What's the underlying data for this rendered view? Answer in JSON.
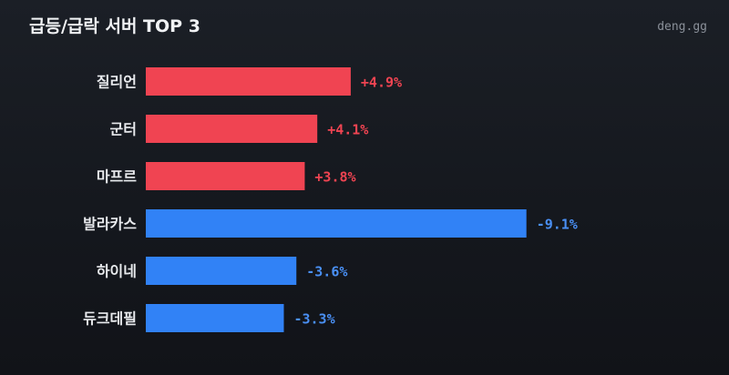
{
  "header": {
    "title": "급등/급락 서버 TOP 3",
    "brand": "deng.gg"
  },
  "colors": {
    "up": "#f04452",
    "down": "#3182f6",
    "up_text": "#f04452",
    "down_text": "#4a90f5"
  },
  "chart_data": {
    "type": "bar",
    "orientation": "horizontal",
    "categories": [
      "질리언",
      "군터",
      "마프르",
      "발라카스",
      "하이네",
      "듀크데필"
    ],
    "values": [
      4.9,
      4.1,
      3.8,
      -9.1,
      -3.6,
      -3.3
    ],
    "value_labels": [
      "+4.9%",
      "+4.1%",
      "+3.8%",
      "-9.1%",
      "-3.6%",
      "-3.3%"
    ],
    "unit": "%",
    "grid": false,
    "legend": "none"
  }
}
